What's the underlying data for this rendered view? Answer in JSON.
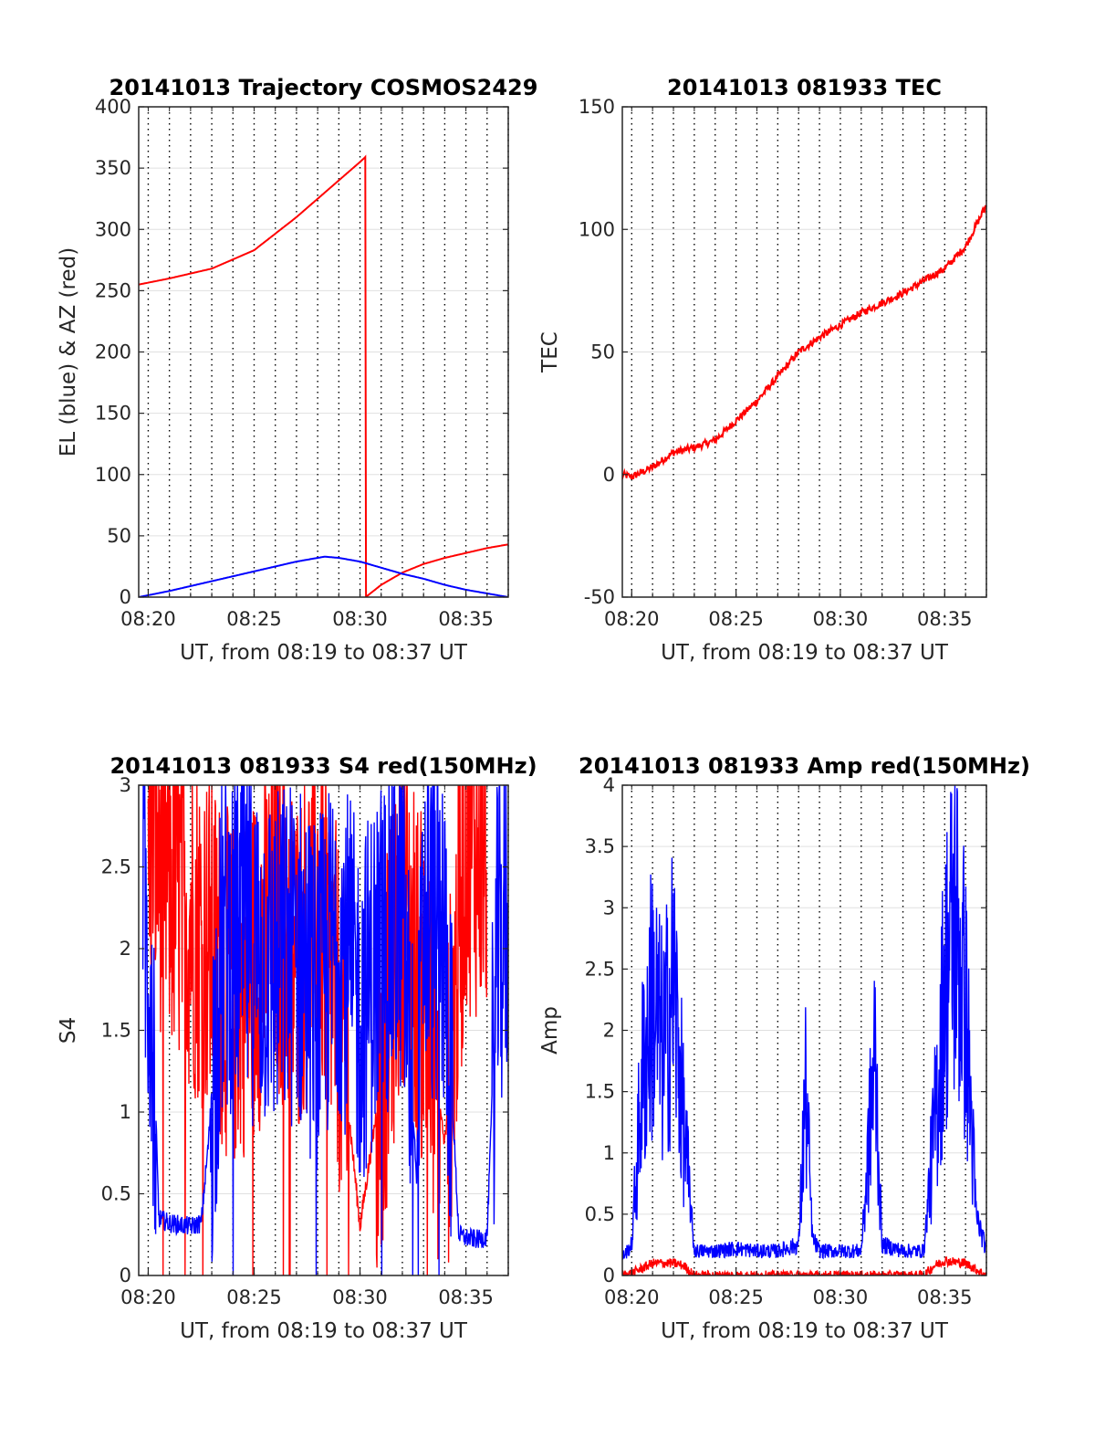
{
  "figure": {
    "date": "20141013",
    "time_window": "from 08:19 to 08:37 UT"
  },
  "chart_data": [
    {
      "type": "line",
      "title": "20141013 Trajectory COSMOS2429",
      "xlabel": "UT, from 08:19 to 08:37 UT",
      "ylabel": "EL (blue) & AZ (red)",
      "xlim": [
        "08:19:33",
        "08:37:00"
      ],
      "ylim": [
        0,
        400
      ],
      "yticks": [
        0,
        50,
        100,
        150,
        200,
        250,
        300,
        350,
        400
      ],
      "xticks": [
        "08:20",
        "08:25",
        "08:30",
        "08:35"
      ],
      "grid": "horizontal solid, vertical dotted every minute",
      "series": [
        {
          "color": "#ff0000",
          "x": [
            "08:19:33",
            "08:21",
            "08:23",
            "08:25",
            "08:27",
            "08:28",
            "08:29",
            "08:30",
            "08:30:15",
            "08:30:16",
            "08:31",
            "08:32",
            "08:33",
            "08:34",
            "08:35",
            "08:36",
            "08:37"
          ],
          "values": [
            255,
            260,
            268,
            283,
            310,
            325,
            340,
            355,
            359,
            0,
            10,
            20,
            27,
            32,
            36,
            40,
            43
          ]
        },
        {
          "color": "#0000ff",
          "x": [
            "08:19:33",
            "08:21",
            "08:23",
            "08:25",
            "08:27",
            "08:28:20",
            "08:29",
            "08:30",
            "08:31",
            "08:32",
            "08:33",
            "08:34",
            "08:35",
            "08:36",
            "08:37"
          ],
          "values": [
            0,
            5,
            13,
            21,
            29,
            33,
            32,
            29,
            24,
            19,
            15,
            10,
            6,
            3,
            0
          ]
        }
      ]
    },
    {
      "type": "line",
      "title": "20141013 081933 TEC",
      "xlabel": "UT, from 08:19 to 08:37 UT",
      "ylabel": "TEC",
      "xlim": [
        "08:19:33",
        "08:37:00"
      ],
      "ylim": [
        -50,
        150
      ],
      "yticks": [
        -50,
        0,
        50,
        100,
        150
      ],
      "xticks": [
        "08:20",
        "08:25",
        "08:30",
        "08:35"
      ],
      "grid": "horizontal solid, vertical dotted every minute",
      "series": [
        {
          "color": "#ff0000",
          "x": [
            "08:19:33",
            "08:20",
            "08:21",
            "08:22",
            "08:23",
            "08:24",
            "08:25",
            "08:26",
            "08:27",
            "08:28",
            "08:29",
            "08:30",
            "08:31",
            "08:32",
            "08:33",
            "08:34",
            "08:35",
            "08:36",
            "08:37"
          ],
          "values": [
            0,
            -1,
            3,
            9,
            11,
            14,
            22,
            30,
            40,
            50,
            56,
            61,
            66,
            70,
            74,
            79,
            84,
            93,
            110
          ]
        }
      ]
    },
    {
      "type": "line",
      "title": "20141013 081933 S4 red(150MHz)",
      "xlabel": "UT, from 08:19 to 08:37 UT",
      "ylabel": "S4",
      "xlim": [
        "08:19:33",
        "08:37:00"
      ],
      "ylim": [
        0,
        3
      ],
      "yticks": [
        0,
        0.5,
        1,
        1.5,
        2,
        2.5,
        3
      ],
      "xticks": [
        "08:20",
        "08:25",
        "08:30",
        "08:35"
      ],
      "grid": "horizontal solid, vertical dotted every minute",
      "series": [
        {
          "color": "#ff0000",
          "x": [
            "08:20",
            "08:21",
            "08:22",
            "08:23",
            "08:24",
            "08:25",
            "08:26",
            "08:27",
            "08:28",
            "08:29",
            "08:30",
            "08:31",
            "08:32",
            "08:33",
            "08:34",
            "08:35",
            "08:36"
          ],
          "values": [
            2.8,
            2.4,
            2.2,
            2.0,
            1.7,
            1.9,
            2.2,
            1.9,
            2.3,
            1.6,
            0.3,
            1.2,
            2.3,
            1.7,
            0.8,
            2.7,
            2.6
          ]
        },
        {
          "color": "#0000ff",
          "x": [
            "08:19:45",
            "08:20:10",
            "08:20:30",
            "08:21",
            "08:22",
            "08:22:30",
            "08:22:50",
            "08:23:30",
            "08:24",
            "08:25",
            "08:26",
            "08:27",
            "08:28",
            "08:29",
            "08:30",
            "08:31",
            "08:32",
            "08:32:40",
            "08:33",
            "08:34",
            "08:34:40",
            "08:35",
            "08:35:40",
            "08:36",
            "08:36:30",
            "08:37"
          ],
          "values": [
            2.2,
            1.8,
            0.35,
            0.32,
            0.3,
            0.32,
            0.8,
            2.0,
            2.1,
            2.0,
            1.9,
            2.0,
            1.7,
            2.1,
            1.6,
            2.0,
            2.2,
            0.6,
            2.2,
            2.0,
            0.25,
            0.23,
            0.22,
            0.24,
            2.0,
            2.2
          ]
        }
      ]
    },
    {
      "type": "line",
      "title": "20141013 081933 Amp red(150MHz)",
      "xlabel": "UT, from 08:19 to 08:37 UT",
      "ylabel": "Amp",
      "xlim": [
        "08:19:33",
        "08:37:00"
      ],
      "ylim": [
        0,
        4
      ],
      "yticks": [
        0,
        0.5,
        1,
        1.5,
        2,
        2.5,
        3,
        3.5,
        4
      ],
      "xticks": [
        "08:20",
        "08:25",
        "08:30",
        "08:35"
      ],
      "grid": "horizontal solid, vertical dotted every minute",
      "series": [
        {
          "color": "#ff0000",
          "x": [
            "08:19:33",
            "08:20",
            "08:21",
            "08:22",
            "08:22:30",
            "08:23",
            "08:34",
            "08:34:30",
            "08:35",
            "08:36",
            "08:37"
          ],
          "values": [
            0.0,
            0.02,
            0.1,
            0.1,
            0.08,
            0.0,
            0.0,
            0.08,
            0.12,
            0.1,
            0.0
          ]
        },
        {
          "color": "#0000ff",
          "x": [
            "08:19:33",
            "08:20",
            "08:20:30",
            "08:21",
            "08:21:30",
            "08:22",
            "08:22:30",
            "08:23",
            "08:24",
            "08:25",
            "08:26",
            "08:27",
            "08:28",
            "08:28:20",
            "08:28:40",
            "08:29",
            "08:30",
            "08:31",
            "08:31:40",
            "08:32",
            "08:33",
            "08:34",
            "08:34:40",
            "08:35",
            "08:35:30",
            "08:36",
            "08:36:30",
            "08:37"
          ],
          "values": [
            0.15,
            0.25,
            1.6,
            2.3,
            1.8,
            2.4,
            1.2,
            0.2,
            0.2,
            0.22,
            0.2,
            0.2,
            0.25,
            1.5,
            0.3,
            0.2,
            0.2,
            0.2,
            1.8,
            0.25,
            0.2,
            0.2,
            1.5,
            2.4,
            2.9,
            2.2,
            0.5,
            0.2
          ]
        }
      ]
    }
  ]
}
